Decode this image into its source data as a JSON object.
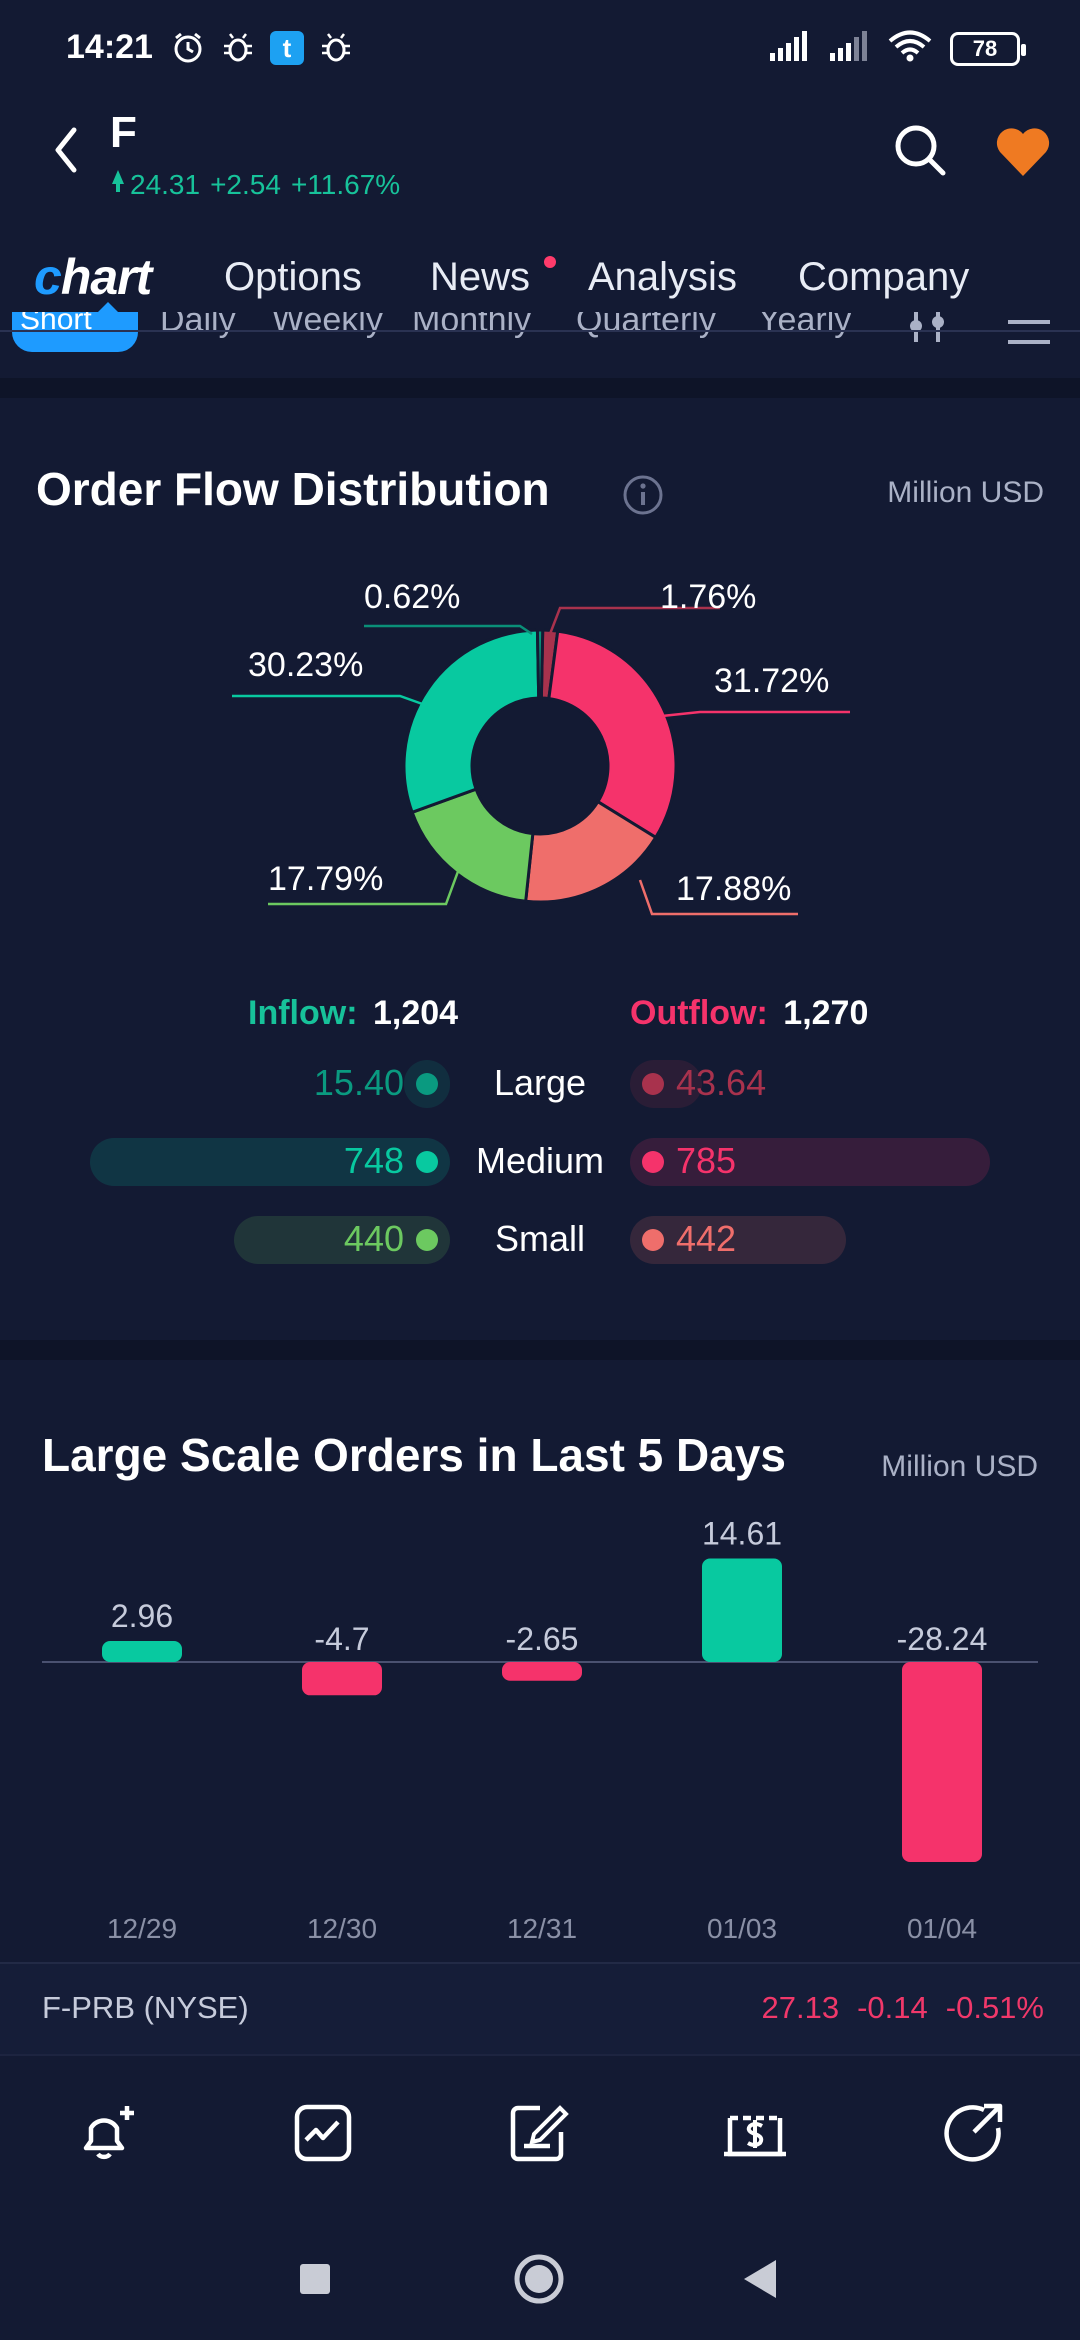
{
  "status_bar": {
    "time": "14:21",
    "left_icons": [
      "alarm-icon",
      "bug-icon",
      "t-app-icon",
      "bug-icon"
    ],
    "t_badge": "t",
    "right_icons": [
      "signal-icon",
      "signal-icon",
      "wifi-icon"
    ],
    "battery": "78"
  },
  "header": {
    "ticker": "F",
    "price": "24.31",
    "change": "+2.54",
    "change_pct": "+11.67%",
    "up_color": "#17c29a"
  },
  "tabs": {
    "chart_prefix": "c",
    "chart_rest": "hart",
    "items": [
      "Options",
      "News",
      "Analysis",
      "Company"
    ]
  },
  "subtabs": {
    "items": [
      "Short",
      "Daily",
      "Weekly",
      "Monthly",
      "Quarterly",
      "Yearly"
    ]
  },
  "order_flow": {
    "title": "Order Flow Distribution",
    "unit": "Million USD",
    "donut": [
      {
        "label": "31.72%",
        "value": 31.72,
        "color": "#f5336b"
      },
      {
        "label": "17.88%",
        "value": 17.88,
        "color": "#ef6e6b"
      },
      {
        "label": "17.79%",
        "value": 17.79,
        "color": "#6cc960"
      },
      {
        "label": "30.23%",
        "value": 30.23,
        "color": "#08c9a0"
      },
      {
        "label": "0.62%",
        "value": 0.62,
        "color": "#0a8f78"
      },
      {
        "label": "1.76%",
        "value": 1.76,
        "color": "#a8324d"
      }
    ],
    "inflow_label": "Inflow:",
    "inflow_value": "1,204",
    "outflow_label": "Outflow:",
    "outflow_value": "1,270",
    "rows": [
      {
        "label": "Large",
        "in": "15.40",
        "out": "43.64",
        "in_frac": 0.08,
        "out_frac": 0.2
      },
      {
        "label": "Medium",
        "in": "748",
        "out": "785",
        "in_frac": 1.0,
        "out_frac": 1.0
      },
      {
        "label": "Small",
        "in": "440",
        "out": "442",
        "in_frac": 0.6,
        "out_frac": 0.6
      }
    ],
    "colors": {
      "in_large": "#0a9a80",
      "in_medium": "#08c9a0",
      "in_small": "#6cc960",
      "out_large": "#a8324d",
      "out_medium": "#f5336b",
      "out_small": "#ef6e6b"
    }
  },
  "large_orders": {
    "title": "Large Scale Orders in Last 5 Days",
    "unit": "Million USD"
  },
  "chart_data": {
    "type": "bar",
    "title": "Large Scale Orders in Last 5 Days",
    "categories": [
      "12/29",
      "12/30",
      "12/31",
      "01/03",
      "01/04"
    ],
    "values": [
      2.96,
      -4.7,
      -2.65,
      14.61,
      -28.24
    ],
    "value_labels": [
      "2.96",
      "-4.7",
      "-2.65",
      "14.61",
      "-28.24"
    ],
    "ylabel": "Million USD",
    "ylim": [
      -28.24,
      14.61
    ],
    "grid": false,
    "colors": {
      "positive": "#08c9a0",
      "negative": "#f5336b"
    }
  },
  "quote_line": {
    "name": "F-PRB (NYSE)",
    "price": "27.13",
    "change": "-0.14",
    "change_pct": "-0.51%"
  },
  "action_bar": {
    "icons": [
      "add-alert-icon",
      "trade-chart-icon",
      "note-edit-icon",
      "trade-dollar-icon",
      "share-icon"
    ]
  },
  "nav_bar": {
    "icons": [
      "recent-apps-icon",
      "home-icon",
      "back-nav-icon"
    ]
  }
}
